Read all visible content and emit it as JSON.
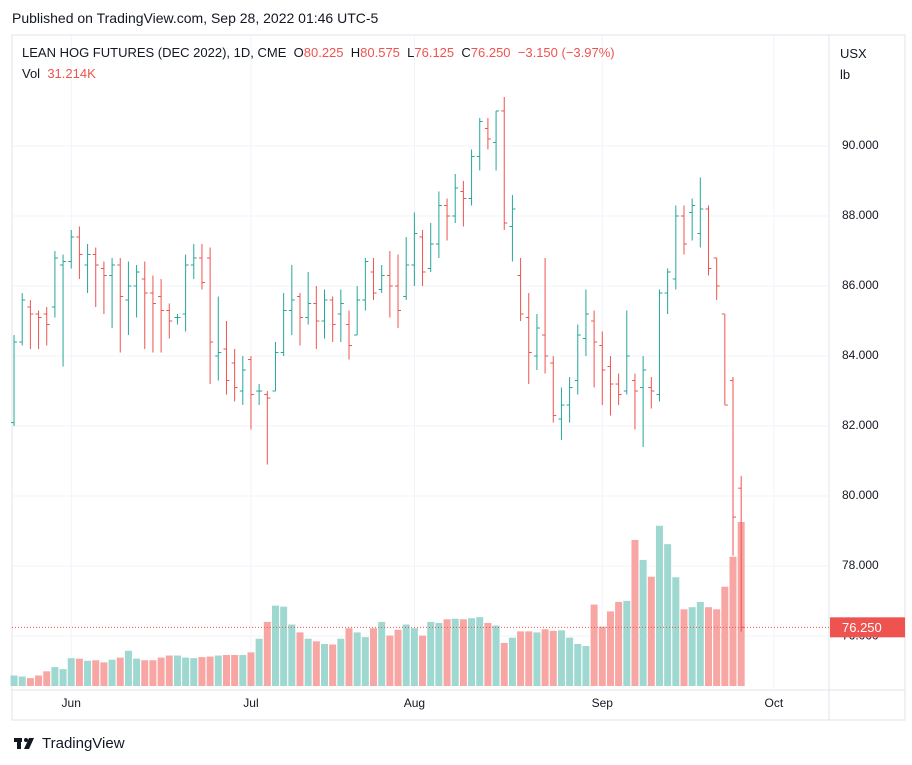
{
  "header": {
    "published": "Published on TradingView.com, Sep 28, 2022 01:46 UTC-5"
  },
  "chart_data": {
    "type": "ohlc",
    "title": "LEAN HOG FUTURES (DEC 2022), 1D, CME",
    "legend": {
      "open": {
        "key": "O",
        "value": "80.225"
      },
      "high": {
        "key": "H",
        "value": "80.575"
      },
      "low": {
        "key": "L",
        "value": "76.125"
      },
      "close": {
        "key": "C",
        "value": "76.250"
      },
      "change": "−3.150 (−3.97%)",
      "volume": {
        "key": "Vol",
        "value": "31.214K"
      }
    },
    "currency": "USX",
    "unit": "lb",
    "last_price_label": "76.250",
    "up_color": "#26a69a",
    "down_color": "#ef5350",
    "volume_up_color": "#9fd8d1",
    "volume_down_color": "#f7a6a4",
    "open": [
      82.1,
      84.4,
      85.4,
      85.2,
      85.2,
      85.4,
      86.6,
      86.7,
      87.4,
      86.6,
      86.9,
      86.5,
      86.3,
      86.6,
      85.6,
      86.0,
      86.2,
      85.8,
      85.7,
      85.3,
      85.1,
      85.2,
      86.6,
      86.8,
      86.8,
      84.0,
      84.2,
      83.8,
      83.0,
      83.9,
      83.0,
      82.9,
      83.0,
      84.1,
      85.3,
      85.7,
      85.1,
      85.5,
      85.0,
      85.6,
      85.2,
      84.9,
      84.6,
      85.6,
      86.4,
      85.9,
      86.3,
      86.0,
      85.7,
      86.6,
      87.4,
      86.5,
      87.2,
      88.3,
      88.0,
      88.7,
      88.5,
      89.7,
      90.5,
      90.1,
      91.0,
      87.7,
      86.3,
      85.1,
      84.0,
      84.6,
      83.8,
      82.2,
      82.6,
      83.3,
      84.5,
      85.0,
      84.3,
      83.7,
      83.2,
      83.0,
      83.3,
      83.1,
      83.1,
      82.9,
      85.8,
      86.2,
      88.0,
      88.1,
      87.5,
      88.2,
      86.8,
      85.2,
      83.3,
      80.225
    ],
    "high": [
      84.6,
      85.8,
      85.6,
      85.3,
      85.4,
      87.0,
      86.9,
      87.6,
      87.7,
      87.2,
      87.1,
      86.7,
      86.8,
      86.8,
      86.7,
      86.6,
      86.7,
      86.3,
      86.2,
      85.5,
      85.2,
      86.9,
      87.2,
      87.2,
      87.1,
      85.7,
      85.0,
      84.2,
      84.0,
      84.0,
      83.2,
      83.0,
      84.4,
      85.8,
      86.6,
      85.8,
      86.4,
      86.0,
      85.9,
      85.7,
      85.9,
      85.3,
      86.0,
      86.8,
      86.8,
      86.6,
      87.0,
      86.9,
      87.4,
      88.1,
      87.6,
      87.8,
      88.7,
      88.5,
      89.2,
      89.0,
      89.9,
      90.8,
      90.8,
      91.0,
      91.4,
      88.6,
      86.8,
      85.8,
      85.2,
      86.8,
      84.0,
      83.1,
      83.4,
      84.9,
      85.9,
      85.3,
      84.7,
      84.0,
      83.5,
      85.3,
      83.5,
      84.0,
      83.4,
      85.9,
      86.5,
      88.3,
      88.3,
      88.5,
      89.1,
      88.3,
      86.8,
      85.2,
      83.4,
      80.575
    ],
    "low": [
      82.0,
      84.3,
      84.2,
      84.2,
      84.3,
      85.1,
      83.7,
      86.5,
      86.2,
      85.8,
      85.4,
      85.2,
      84.8,
      84.1,
      84.6,
      85.1,
      84.2,
      84.1,
      84.1,
      84.5,
      84.9,
      84.7,
      86.2,
      85.9,
      83.2,
      83.3,
      82.9,
      82.7,
      82.6,
      81.9,
      82.6,
      80.9,
      83.0,
      84.0,
      84.6,
      84.3,
      84.9,
      84.2,
      84.5,
      84.4,
      84.4,
      83.9,
      84.6,
      85.3,
      85.6,
      85.8,
      85.1,
      84.8,
      85.6,
      86.0,
      86.0,
      86.4,
      86.8,
      87.3,
      87.8,
      87.7,
      88.3,
      89.3,
      89.9,
      89.3,
      87.6,
      86.7,
      85.0,
      83.2,
      83.6,
      83.5,
      82.1,
      81.6,
      82.1,
      82.9,
      84.0,
      83.1,
      82.6,
      82.3,
      82.6,
      82.9,
      81.9,
      81.4,
      82.5,
      82.7,
      85.2,
      85.9,
      86.9,
      87.3,
      87.1,
      86.3,
      85.6,
      82.6,
      78.3,
      76.125
    ],
    "close": [
      84.4,
      85.6,
      85.2,
      85.1,
      84.9,
      86.8,
      86.7,
      87.4,
      86.9,
      86.9,
      86.6,
      86.3,
      86.6,
      85.7,
      86.0,
      86.4,
      85.8,
      85.5,
      85.3,
      85.0,
      85.1,
      86.6,
      86.8,
      86.1,
      84.4,
      84.1,
      83.3,
      83.1,
      83.6,
      82.9,
      83.0,
      82.8,
      84.1,
      85.3,
      85.6,
      85.1,
      85.5,
      85.0,
      85.6,
      84.9,
      85.5,
      84.3,
      85.6,
      86.7,
      85.8,
      86.3,
      86.0,
      85.3,
      86.6,
      87.5,
      86.4,
      87.2,
      88.3,
      88.0,
      88.8,
      88.5,
      89.7,
      90.7,
      90.2,
      91.0,
      87.8,
      88.2,
      85.2,
      84.1,
      84.8,
      84.0,
      82.3,
      82.6,
      83.1,
      84.6,
      85.2,
      84.4,
      83.6,
      83.2,
      82.9,
      84.0,
      83.0,
      83.6,
      83.0,
      85.8,
      86.4,
      88.0,
      87.2,
      88.3,
      88.2,
      86.5,
      86.0,
      82.6,
      79.4,
      76.25
    ],
    "volume": [
      2.0,
      1.8,
      1.5,
      2.0,
      2.8,
      3.6,
      3.2,
      5.3,
      5.2,
      4.8,
      4.9,
      4.5,
      5.0,
      5.4,
      6.7,
      5.2,
      4.9,
      4.9,
      5.4,
      5.8,
      5.8,
      5.4,
      5.3,
      5.5,
      5.6,
      5.8,
      5.9,
      5.9,
      5.9,
      6.4,
      9.0,
      12.2,
      15.3,
      15.1,
      11.7,
      10.2,
      9.0,
      8.5,
      8.0,
      7.9,
      9.0,
      11.0,
      10.2,
      9.3,
      11.0,
      12.2,
      9.6,
      10.7,
      11.7,
      11.0,
      9.6,
      12.2,
      12.0,
      12.7,
      12.8,
      12.7,
      12.9,
      13.1,
      12.0,
      11.5,
      8.2,
      9.2,
      10.4,
      10.4,
      10.2,
      10.8,
      10.5,
      10.6,
      9.2,
      8.0,
      7.6,
      15.5,
      11.3,
      14.2,
      16.0,
      16.2,
      27.8,
      24.0,
      20.8,
      30.5,
      27.0,
      20.7,
      14.6,
      15.0,
      16.0,
      15.0,
      14.6,
      18.9,
      24.6,
      31.214
    ],
    "xlim": [
      -0.25,
      99.75
    ],
    "xticks": [
      {
        "value": 7,
        "label": "Jun"
      },
      {
        "value": 29,
        "label": "Jul"
      },
      {
        "value": 49,
        "label": "Aug"
      },
      {
        "value": 72,
        "label": "Sep"
      },
      {
        "value": 93,
        "label": "Oct"
      }
    ],
    "ylim": [
      74.46,
      93.17
    ],
    "yticks": [
      {
        "value": 76,
        "label": "76.000"
      },
      {
        "value": 78,
        "label": "78.000"
      },
      {
        "value": 80,
        "label": "80.000"
      },
      {
        "value": 82,
        "label": "82.000"
      },
      {
        "value": 84,
        "label": "84.000"
      },
      {
        "value": 86,
        "label": "86.000"
      },
      {
        "value": 88,
        "label": "88.000"
      },
      {
        "value": 90,
        "label": "90.000"
      }
    ],
    "grid": true
  },
  "footer": {
    "brand": "TradingView"
  }
}
